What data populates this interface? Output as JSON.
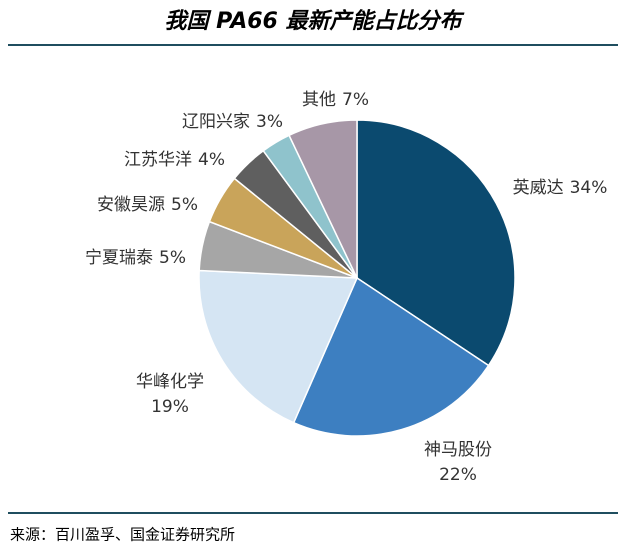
{
  "chart_data": {
    "type": "pie",
    "title": "我国 PA66 最新产能占比分布",
    "categories": [
      "英威达",
      "神马股份",
      "华峰化学",
      "宁夏瑞泰",
      "安徽昊源",
      "江苏华洋",
      "辽阳兴家",
      "其他"
    ],
    "values": [
      34,
      22,
      19,
      5,
      5,
      4,
      3,
      7
    ],
    "value_labels": [
      "34%",
      "22%",
      "19%",
      "5%",
      "5%",
      "4%",
      "3%",
      "7%"
    ],
    "colors": [
      "#0b4a6f",
      "#3d7fc1",
      "#d5e5f3",
      "#a6a6a6",
      "#c9a45a",
      "#5f5f5f",
      "#8fc3cc",
      "#a797a7"
    ],
    "source": "来源：百川盈孚、国金证券研究所"
  }
}
